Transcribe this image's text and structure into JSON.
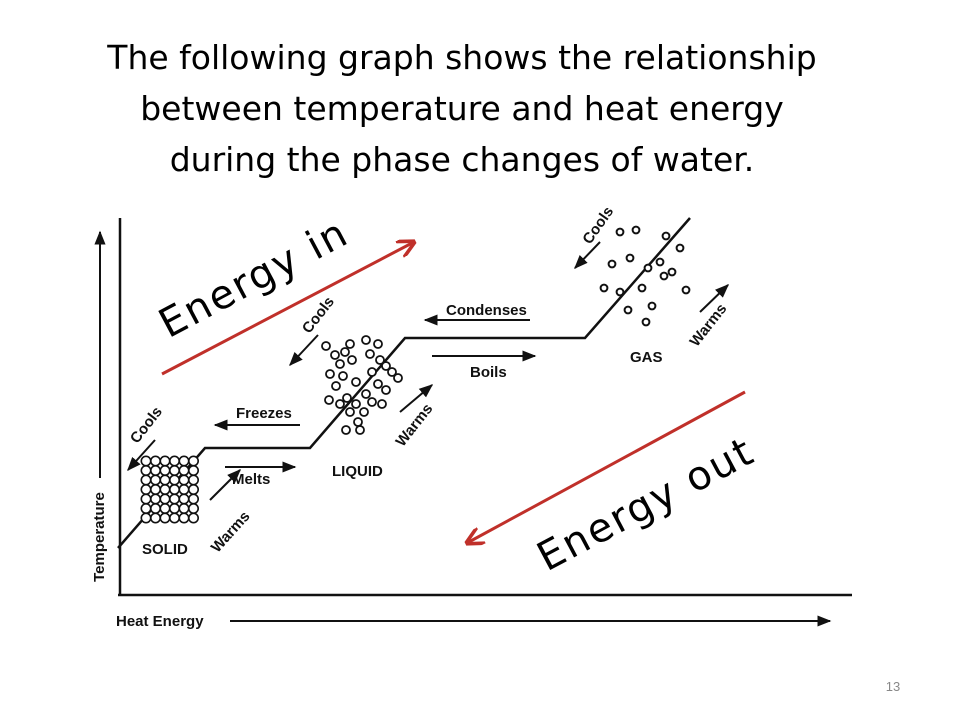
{
  "title": [
    "The following graph shows the relationship",
    "between temperature and heat energy",
    "during the phase changes of water."
  ],
  "diagram": {
    "axis_labels": {
      "y": "Temperature",
      "x": "Heat Energy"
    },
    "phases": [
      "SOLID",
      "LIQUID",
      "GAS"
    ],
    "processes": [
      "Cools",
      "Freezes",
      "Melts",
      "Warms",
      "Cools",
      "Warms",
      "Condenses",
      "Boils",
      "Cools",
      "Warms"
    ],
    "annotations": [
      "Energy in",
      "Energy out"
    ]
  },
  "slide_number": "13"
}
